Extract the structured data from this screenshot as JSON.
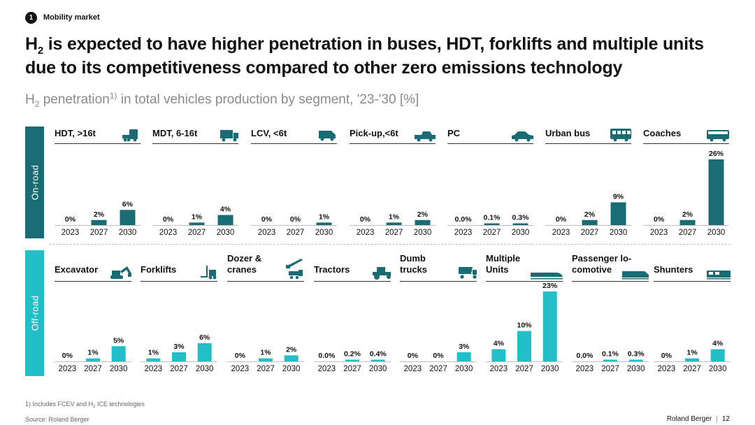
{
  "header": {
    "section_number": "1",
    "section_label": "Mobility market"
  },
  "headline": {
    "part1": "H",
    "part1_sub": "2",
    "part2": " is expected to have higher penetration in buses, HDT, forklifts and multiple units due to its competitiveness compared to other zero emissions technology"
  },
  "subtitle": {
    "part1": "H",
    "part1_sub": "2",
    "part2": " penetration",
    "sup": "1)",
    "part3": " in total vehicles production by segment, '23-'30 [%]"
  },
  "bands": {
    "onroad": "On-road",
    "offroad": "Off-road"
  },
  "colors": {
    "onroad": "#1a6c74",
    "offroad": "#22bfc8",
    "text": "#111111"
  },
  "chart_data": [
    {
      "type": "bar",
      "group": "On-road",
      "title": "HDT, >16t",
      "icon": "truck-icon",
      "categories": [
        "2023",
        "2027",
        "2030"
      ],
      "values": [
        0,
        2,
        6
      ],
      "labels": [
        "0%",
        "2%",
        "6%"
      ]
    },
    {
      "type": "bar",
      "group": "On-road",
      "title": "MDT, 6-16t",
      "icon": "box-truck-icon",
      "categories": [
        "2023",
        "2027",
        "2030"
      ],
      "values": [
        0,
        1,
        4
      ],
      "labels": [
        "0%",
        "1%",
        "4%"
      ]
    },
    {
      "type": "bar",
      "group": "On-road",
      "title": "LCV, <6t",
      "icon": "van-icon",
      "categories": [
        "2023",
        "2027",
        "2030"
      ],
      "values": [
        0,
        0,
        1
      ],
      "labels": [
        "0%",
        "0%",
        "1%"
      ]
    },
    {
      "type": "bar",
      "group": "On-road",
      "title": "Pick-up,<6t",
      "icon": "pickup-icon",
      "categories": [
        "2023",
        "2027",
        "2030"
      ],
      "values": [
        0,
        1,
        2
      ],
      "labels": [
        "0%",
        "1%",
        "2%"
      ]
    },
    {
      "type": "bar",
      "group": "On-road",
      "title": "PC",
      "icon": "car-icon",
      "categories": [
        "2023",
        "2027",
        "2030"
      ],
      "values": [
        0.0,
        0.1,
        0.3
      ],
      "labels": [
        "0.0%",
        "0.1%",
        "0.3%"
      ]
    },
    {
      "type": "bar",
      "group": "On-road",
      "title": "Urban bus",
      "icon": "bus-icon",
      "categories": [
        "2023",
        "2027",
        "2030"
      ],
      "values": [
        0,
        2,
        9
      ],
      "labels": [
        "0%",
        "2%",
        "9%"
      ]
    },
    {
      "type": "bar",
      "group": "On-road",
      "title": "Coaches",
      "icon": "coach-icon",
      "categories": [
        "2023",
        "2027",
        "2030"
      ],
      "values": [
        0,
        2,
        26
      ],
      "labels": [
        "0%",
        "2%",
        "26%"
      ]
    },
    {
      "type": "bar",
      "group": "Off-road",
      "title": "Excavator",
      "icon": "excavator-icon",
      "categories": [
        "2023",
        "2027",
        "2030"
      ],
      "values": [
        0,
        1,
        5
      ],
      "labels": [
        "0%",
        "1%",
        "5%"
      ]
    },
    {
      "type": "bar",
      "group": "Off-road",
      "title": "Forklifts",
      "icon": "forklift-icon",
      "categories": [
        "2023",
        "2027",
        "2030"
      ],
      "values": [
        1,
        3,
        6
      ],
      "labels": [
        "1%",
        "3%",
        "6%"
      ]
    },
    {
      "type": "bar",
      "group": "Off-road",
      "title": "Dozer & cranes",
      "title_lines": [
        "Dozer &",
        "cranes"
      ],
      "icon": "dozer-crane-icon",
      "categories": [
        "2023",
        "2027",
        "2030"
      ],
      "values": [
        0,
        1,
        2
      ],
      "labels": [
        "0%",
        "1%",
        "2%"
      ]
    },
    {
      "type": "bar",
      "group": "Off-road",
      "title": "Tractors",
      "icon": "tractor-icon",
      "categories": [
        "2023",
        "2027",
        "2030"
      ],
      "values": [
        0.0,
        0.2,
        0.4
      ],
      "labels": [
        "0.0%",
        "0.2%",
        "0.4%"
      ]
    },
    {
      "type": "bar",
      "group": "Off-road",
      "title": "Dumb trucks",
      "title_lines": [
        "Dumb",
        "trucks"
      ],
      "icon": "dump-truck-icon",
      "categories": [
        "2023",
        "2027",
        "2030"
      ],
      "values": [
        0,
        0,
        3
      ],
      "labels": [
        "0%",
        "0%",
        "3%"
      ]
    },
    {
      "type": "bar",
      "group": "Off-road",
      "title": "Multiple Units",
      "title_lines": [
        "Multiple",
        "Units"
      ],
      "icon": "train-icon",
      "categories": [
        "2023",
        "2027",
        "2030"
      ],
      "values": [
        4,
        10,
        23
      ],
      "labels": [
        "4%",
        "10%",
        "23%"
      ]
    },
    {
      "type": "bar",
      "group": "Off-road",
      "title": "Passenger lo-comotive",
      "title_lines": [
        "Passenger lo-",
        "comotive"
      ],
      "icon": "locomotive-icon",
      "categories": [
        "2023",
        "2027",
        "2030"
      ],
      "values": [
        0.0,
        0.1,
        0.3
      ],
      "labels": [
        "0.0%",
        "0.1%",
        "0.3%"
      ]
    },
    {
      "type": "bar",
      "group": "Off-road",
      "title": "Shunters",
      "icon": "shunter-icon",
      "categories": [
        "2023",
        "2027",
        "2030"
      ],
      "values": [
        0,
        1,
        4
      ],
      "labels": [
        "0%",
        "1%",
        "4%"
      ]
    }
  ],
  "footnote": {
    "part1": "1) Includes FCEV and H",
    "sub": "2",
    "part2": " ICE technologies"
  },
  "source": "Source: Roland Berger",
  "brand": {
    "name": "Roland Berger",
    "page": "12"
  }
}
